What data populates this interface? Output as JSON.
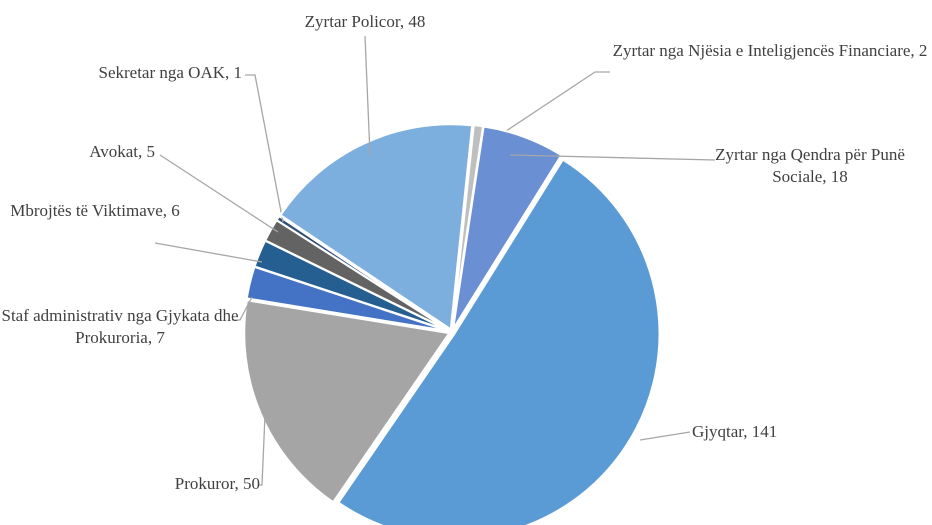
{
  "chart_data": {
    "type": "pie",
    "values": [
      2,
      18,
      141,
      50,
      7,
      6,
      5,
      1,
      48
    ],
    "value_labels": [
      "Zyrtar nga Njësia e Inteligjencës Financiare, 2",
      "Zyrtar nga Qendra për Punë Sociale, 18",
      "Gjyqtar, 141",
      "Prokuror, 50",
      "Staf administrativ nga Gjykata dhe Prokuroria, 7",
      "Mbrojtës të Viktimave, 6",
      "Avokat, 5",
      "Sekretar nga OAK, 1",
      "Zyrtar Policor, 48"
    ],
    "colors": [
      "#bfbfbf",
      "#6a8fd3",
      "#5b9bd5",
      "#a5a5a5",
      "#4472c4",
      "#255e91",
      "#636363",
      "#2f4f73",
      "#7cafdd"
    ]
  }
}
